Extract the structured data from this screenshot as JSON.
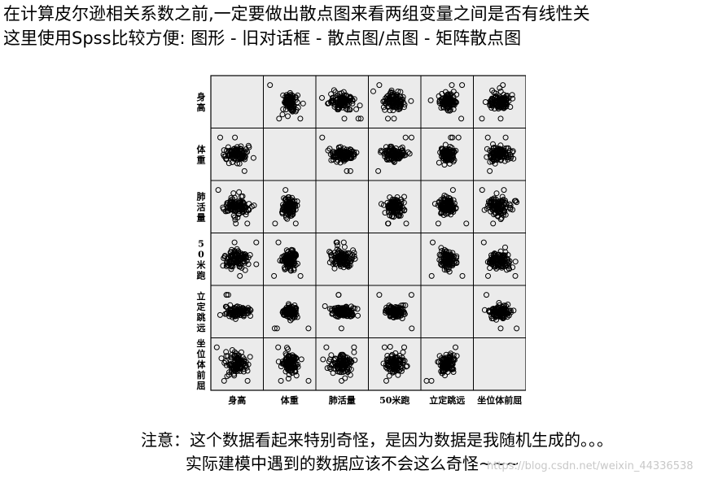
{
  "intro": {
    "line1": "在计算皮尔逊相关系数之前,一定要做出散点图来看两组变量之间是否有线性关",
    "line2": "这里使用Spss比较方便: 图形 - 旧对话框 - 散点图/点图 - 矩阵散点图"
  },
  "chart_data": {
    "type": "scatter",
    "subtype": "scatter-matrix",
    "variables": [
      "身高",
      "体重",
      "肺活量",
      "50米跑",
      "立定跳远",
      "坐位体前屈"
    ],
    "row_labels": [
      "身高",
      "体重",
      "肺活量",
      "50米跑",
      "立定跳远",
      "坐位体前屈"
    ],
    "col_labels": [
      "身高",
      "体重",
      "肺活量",
      "50米跑",
      "立定跳远",
      "坐位体前屈"
    ],
    "diagonal": "empty",
    "grid": false,
    "legend": "none"
  },
  "caption": {
    "line1": "注意：这个数据看起来特别奇怪，是因为数据是我随机生成的。。。",
    "line2": "实际建模中遇到的数据应该不会这么奇怪~~~"
  },
  "watermark": "https://blog.csdn.net/weixin_44336538",
  "colors": {
    "marker": "#000000",
    "cell_background": "#ebebeb",
    "border": "#000000"
  }
}
